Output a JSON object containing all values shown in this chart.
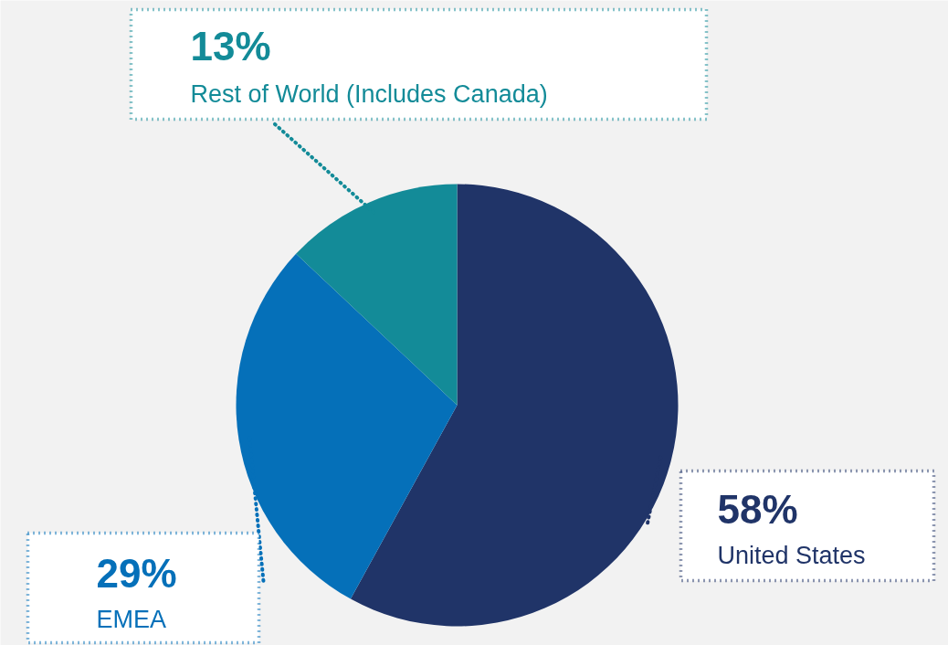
{
  "chart_data": {
    "type": "pie",
    "categories": [
      "United States",
      "EMEA",
      "Rest of World (Includes Canada)"
    ],
    "values": [
      58,
      29,
      13
    ],
    "colors": [
      "#203468",
      "#0570b9",
      "#138b98"
    ],
    "value_labels": [
      "58%",
      "29%",
      "13%"
    ]
  }
}
